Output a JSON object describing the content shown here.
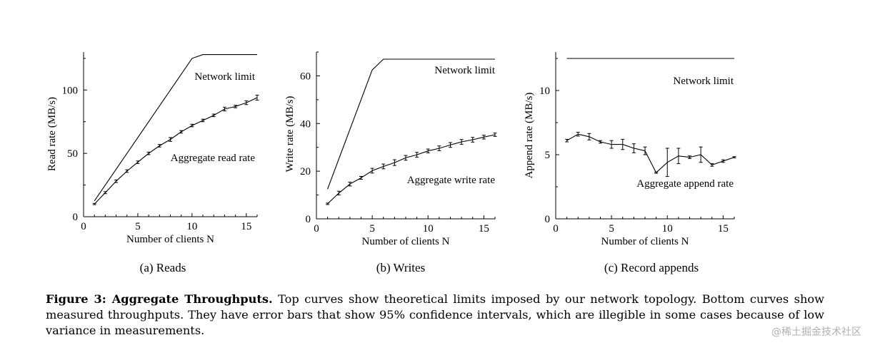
{
  "chart_data": [
    {
      "type": "line",
      "sublabel": "(a) Reads",
      "xlabel": "Number of clients N",
      "ylabel": "Read rate (MB/s)",
      "xlim": [
        0,
        16
      ],
      "ylim": [
        0,
        130
      ],
      "xticks": [
        0,
        5,
        10,
        15
      ],
      "yticks": [
        0,
        50,
        100
      ],
      "series": [
        {
          "name": "Network limit",
          "x": [
            1,
            10,
            11,
            16
          ],
          "y": [
            12.5,
            125,
            128,
            128
          ]
        },
        {
          "name": "Aggregate read rate",
          "x": [
            1,
            2,
            3,
            4,
            5,
            6,
            7,
            8,
            9,
            10,
            11,
            12,
            13,
            14,
            15,
            16
          ],
          "y": [
            10,
            19,
            28,
            36,
            43,
            50,
            56,
            61,
            67,
            72,
            76,
            80,
            85,
            87,
            90,
            94
          ],
          "err": [
            0.5,
            0.8,
            1,
            1,
            1,
            1,
            1,
            1.5,
            1,
            1,
            1,
            1,
            1.5,
            1,
            1.5,
            2
          ]
        }
      ]
    },
    {
      "type": "line",
      "sublabel": "(b) Writes",
      "xlabel": "Number of clients N",
      "ylabel": "Write rate (MB/s)",
      "xlim": [
        0,
        16
      ],
      "ylim": [
        0,
        70
      ],
      "xticks": [
        0,
        5,
        10,
        15
      ],
      "yticks": [
        0,
        20,
        40,
        60
      ],
      "series": [
        {
          "name": "Network limit",
          "x": [
            1,
            5,
            6,
            16
          ],
          "y": [
            12.5,
            62.5,
            67,
            67
          ]
        },
        {
          "name": "Aggregate write rate",
          "x": [
            1,
            2,
            3,
            4,
            5,
            6,
            7,
            8,
            9,
            10,
            11,
            12,
            13,
            14,
            15,
            16
          ],
          "y": [
            6.3,
            10.8,
            14.6,
            17.2,
            20.2,
            22,
            23.6,
            25.6,
            26.9,
            28.5,
            29.6,
            31,
            32.3,
            33.2,
            34.3,
            35.3
          ],
          "err": [
            0.3,
            0.8,
            0.8,
            0.6,
            1,
            1,
            1.2,
            1,
            1,
            0.8,
            1,
            1,
            1,
            1,
            0.8,
            0.7
          ]
        }
      ]
    },
    {
      "type": "line",
      "sublabel": "(c) Record appends",
      "xlabel": "Number of clients N",
      "ylabel": "Append rate (MB/s)",
      "xlim": [
        0,
        16
      ],
      "ylim": [
        0,
        13
      ],
      "xticks": [
        0,
        5,
        10,
        15
      ],
      "yticks": [
        0,
        5,
        10
      ],
      "series": [
        {
          "name": "Network limit",
          "x": [
            1,
            16
          ],
          "y": [
            12.5,
            12.5
          ]
        },
        {
          "name": "Aggregate append rate",
          "x": [
            1,
            2,
            3,
            4,
            5,
            6,
            7,
            8,
            9,
            10,
            11,
            12,
            13,
            14,
            15,
            16
          ],
          "y": [
            6.1,
            6.6,
            6.4,
            6.0,
            5.8,
            5.8,
            5.5,
            5.3,
            3.6,
            4.4,
            4.9,
            4.8,
            5.0,
            4.2,
            4.5,
            4.8
          ],
          "err": [
            0.1,
            0.15,
            0.25,
            0.1,
            0.3,
            0.4,
            0.35,
            0.3,
            0.05,
            1.1,
            0.6,
            0.1,
            0.6,
            0.1,
            0.1,
            0.05
          ]
        }
      ]
    }
  ],
  "caption": {
    "title": "Figure 3: Aggregate Throughputs.",
    "body": "Top curves show theoretical limits imposed by our network topology. Bottom curves show measured throughputs. They have error bars that show 95% confidence intervals, which are illegible in some cases because of low variance in measurements."
  },
  "watermark": "@稀土掘金技术社区"
}
